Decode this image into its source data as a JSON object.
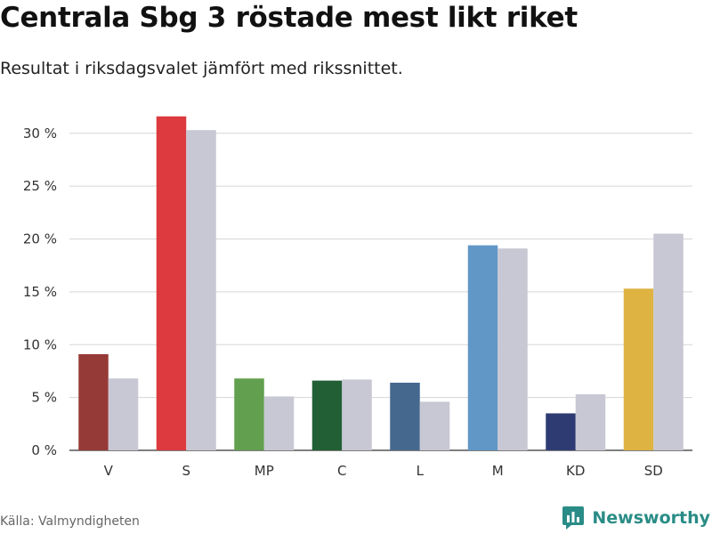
{
  "header": {
    "title": "Centrala Sbg 3 röstade mest likt riket",
    "subtitle": "Resultat i riksdagsvalet jämfört med rikssnittet."
  },
  "footer": {
    "source": "Källa: Valmyndigheten",
    "brand": "Newsworthy",
    "brand_icon": "bar-chart-logo-icon",
    "brand_color": "#2a8c86"
  },
  "chart_data": {
    "type": "bar",
    "categories": [
      "V",
      "S",
      "MP",
      "C",
      "L",
      "M",
      "KD",
      "SD"
    ],
    "series": [
      {
        "values": [
          9.1,
          31.6,
          6.8,
          6.6,
          6.4,
          19.4,
          3.5,
          15.3
        ],
        "colors": [
          "#963a37",
          "#dc3a3f",
          "#629f4f",
          "#235f35",
          "#45688f",
          "#6097c6",
          "#2e3b73",
          "#deb342"
        ]
      },
      {
        "values": [
          6.8,
          30.3,
          5.1,
          6.7,
          4.6,
          19.1,
          5.3,
          20.5
        ],
        "color": "#c8c7d4"
      }
    ],
    "yticks": [
      0,
      5,
      10,
      15,
      20,
      25,
      30
    ],
    "ytick_suffix": " %",
    "ylim": [
      0,
      32
    ],
    "grid": true,
    "xlabel": "",
    "ylabel": ""
  }
}
